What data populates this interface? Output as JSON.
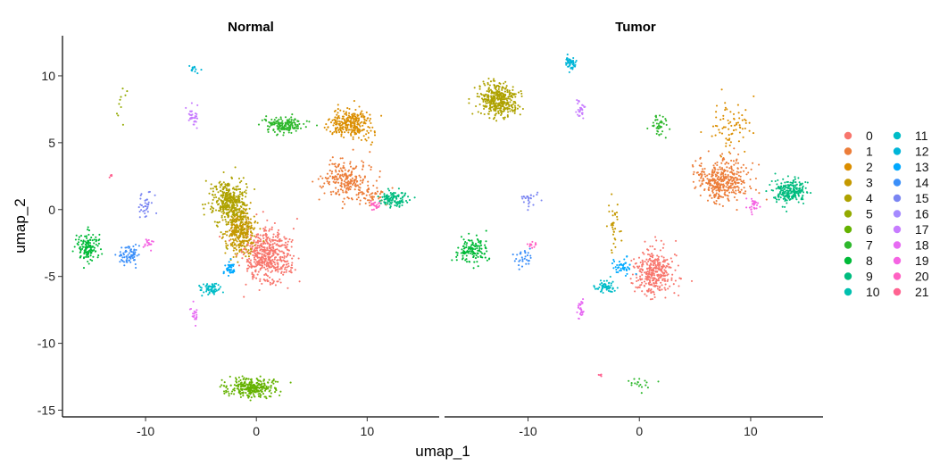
{
  "chart_data": {
    "type": "scatter",
    "panels": [
      "Normal",
      "Tumor"
    ],
    "xlabel": "umap_1",
    "ylabel": "umap_2",
    "xlim": [
      -17.5,
      16.5
    ],
    "ylim": [
      -15.5,
      13.0
    ],
    "xticks": [
      -10,
      0,
      10
    ],
    "yticks": [
      10,
      5,
      0,
      -5,
      -10,
      -15
    ],
    "grid": false,
    "legend_position": "right",
    "legend_columns": 2,
    "clusters": [
      {
        "name": "0",
        "color": "#F8766D"
      },
      {
        "name": "1",
        "color": "#EC7D39"
      },
      {
        "name": "2",
        "color": "#DB8E00"
      },
      {
        "name": "3",
        "color": "#C59900"
      },
      {
        "name": "4",
        "color": "#AEA200"
      },
      {
        "name": "5",
        "color": "#93AA00"
      },
      {
        "name": "6",
        "color": "#64B200"
      },
      {
        "name": "7",
        "color": "#2EB82D"
      },
      {
        "name": "8",
        "color": "#00BA38"
      },
      {
        "name": "9",
        "color": "#00BC7F"
      },
      {
        "name": "10",
        "color": "#00C0AF"
      },
      {
        "name": "11",
        "color": "#00BCC7"
      },
      {
        "name": "12",
        "color": "#00B5D8"
      },
      {
        "name": "13",
        "color": "#00A9FF"
      },
      {
        "name": "14",
        "color": "#3B8FF9"
      },
      {
        "name": "15",
        "color": "#7A85F2"
      },
      {
        "name": "16",
        "color": "#A58AFF"
      },
      {
        "name": "17",
        "color": "#C77CFF"
      },
      {
        "name": "18",
        "color": "#E76BF3"
      },
      {
        "name": "19",
        "color": "#F564E3"
      },
      {
        "name": "20",
        "color": "#FF61C3"
      },
      {
        "name": "21",
        "color": "#FF6391"
      }
    ],
    "groups": {
      "Normal": [
        {
          "cluster": "0",
          "cx": 1.0,
          "cy": -3.5,
          "sx": 1.5,
          "sy": 1.4,
          "n": 520
        },
        {
          "cluster": "1",
          "cx": 8.0,
          "cy": 2.2,
          "sx": 1.4,
          "sy": 1.0,
          "n": 240
        },
        {
          "cluster": "1",
          "cx": 10.5,
          "cy": 1.0,
          "sx": 1.0,
          "sy": 0.5,
          "n": 45
        },
        {
          "cluster": "2",
          "cx": 8.6,
          "cy": 6.5,
          "sx": 1.2,
          "sy": 0.8,
          "n": 280
        },
        {
          "cluster": "3",
          "cx": -1.5,
          "cy": -1.5,
          "sx": 0.9,
          "sy": 1.3,
          "n": 350
        },
        {
          "cluster": "4",
          "cx": -2.4,
          "cy": 0.6,
          "sx": 1.1,
          "sy": 1.2,
          "n": 380
        },
        {
          "cluster": "5",
          "cx": -12.2,
          "cy": 7.8,
          "sx": 0.3,
          "sy": 0.8,
          "n": 10
        },
        {
          "cluster": "6",
          "cx": -0.5,
          "cy": -13.3,
          "sx": 1.5,
          "sy": 0.5,
          "n": 280
        },
        {
          "cluster": "7",
          "cx": 2.6,
          "cy": 6.3,
          "sx": 1.3,
          "sy": 0.4,
          "n": 170
        },
        {
          "cluster": "8",
          "cx": -15.2,
          "cy": -2.8,
          "sx": 0.8,
          "sy": 0.7,
          "n": 130
        },
        {
          "cluster": "9",
          "cx": 12.4,
          "cy": 0.8,
          "sx": 0.9,
          "sy": 0.4,
          "n": 110
        },
        {
          "cluster": "11",
          "cx": -4.2,
          "cy": -5.9,
          "sx": 0.6,
          "sy": 0.3,
          "n": 70
        },
        {
          "cluster": "12",
          "cx": -5.7,
          "cy": 10.5,
          "sx": 0.4,
          "sy": 0.2,
          "n": 14
        },
        {
          "cluster": "13",
          "cx": -2.4,
          "cy": -4.5,
          "sx": 0.4,
          "sy": 0.3,
          "n": 40
        },
        {
          "cluster": "14",
          "cx": -11.5,
          "cy": -3.4,
          "sx": 0.7,
          "sy": 0.5,
          "n": 75
        },
        {
          "cluster": "15",
          "cx": -10.0,
          "cy": 0.4,
          "sx": 0.4,
          "sy": 0.5,
          "n": 35
        },
        {
          "cluster": "17",
          "cx": -5.7,
          "cy": 7.0,
          "sx": 0.3,
          "sy": 0.6,
          "n": 35
        },
        {
          "cluster": "18",
          "cx": -5.6,
          "cy": -7.8,
          "sx": 0.2,
          "sy": 0.5,
          "n": 20
        },
        {
          "cluster": "19",
          "cx": -9.8,
          "cy": -2.5,
          "sx": 0.3,
          "sy": 0.3,
          "n": 18
        },
        {
          "cluster": "20",
          "cx": 10.8,
          "cy": 0.4,
          "sx": 0.4,
          "sy": 0.3,
          "n": 22
        },
        {
          "cluster": "21",
          "cx": -13.2,
          "cy": 2.5,
          "sx": 0.1,
          "sy": 0.1,
          "n": 5
        }
      ],
      "Tumor": [
        {
          "cluster": "0",
          "cx": 1.3,
          "cy": -4.8,
          "sx": 1.2,
          "sy": 1.2,
          "n": 330
        },
        {
          "cluster": "1",
          "cx": 7.5,
          "cy": 2.2,
          "sx": 1.6,
          "sy": 1.1,
          "n": 380
        },
        {
          "cluster": "2",
          "cx": 8.2,
          "cy": 6.2,
          "sx": 1.2,
          "sy": 1.3,
          "n": 75
        },
        {
          "cluster": "3",
          "cx": -2.3,
          "cy": -1.2,
          "sx": 0.4,
          "sy": 1.5,
          "n": 35
        },
        {
          "cluster": "4",
          "cx": -12.6,
          "cy": 8.2,
          "sx": 1.2,
          "sy": 0.9,
          "n": 380
        },
        {
          "cluster": "7",
          "cx": 1.8,
          "cy": 6.3,
          "sx": 0.5,
          "sy": 0.5,
          "n": 45
        },
        {
          "cluster": "7",
          "cx": 0.0,
          "cy": -13.0,
          "sx": 1.0,
          "sy": 0.4,
          "n": 18
        },
        {
          "cluster": "8",
          "cx": -15.0,
          "cy": -3.0,
          "sx": 1.1,
          "sy": 0.7,
          "n": 130
        },
        {
          "cluster": "9",
          "cx": 13.5,
          "cy": 1.4,
          "sx": 1.0,
          "sy": 0.6,
          "n": 220
        },
        {
          "cluster": "11",
          "cx": -3.0,
          "cy": -5.8,
          "sx": 0.7,
          "sy": 0.3,
          "n": 65
        },
        {
          "cluster": "12",
          "cx": -6.2,
          "cy": 11.0,
          "sx": 0.4,
          "sy": 0.4,
          "n": 55
        },
        {
          "cluster": "13",
          "cx": -1.5,
          "cy": -4.3,
          "sx": 0.6,
          "sy": 0.4,
          "n": 45
        },
        {
          "cluster": "14",
          "cx": -10.5,
          "cy": -3.6,
          "sx": 0.5,
          "sy": 0.4,
          "n": 30
        },
        {
          "cluster": "15",
          "cx": -9.9,
          "cy": 0.8,
          "sx": 0.5,
          "sy": 0.4,
          "n": 25
        },
        {
          "cluster": "17",
          "cx": -5.3,
          "cy": 7.5,
          "sx": 0.3,
          "sy": 0.5,
          "n": 30
        },
        {
          "cluster": "18",
          "cx": -5.3,
          "cy": -7.5,
          "sx": 0.2,
          "sy": 0.5,
          "n": 28
        },
        {
          "cluster": "19",
          "cx": 10.2,
          "cy": 0.2,
          "sx": 0.3,
          "sy": 0.4,
          "n": 30
        },
        {
          "cluster": "20",
          "cx": -9.6,
          "cy": -2.6,
          "sx": 0.3,
          "sy": 0.2,
          "n": 12
        },
        {
          "cluster": "21",
          "cx": -3.5,
          "cy": -12.4,
          "sx": 0.2,
          "sy": 0.05,
          "n": 5
        }
      ]
    }
  }
}
